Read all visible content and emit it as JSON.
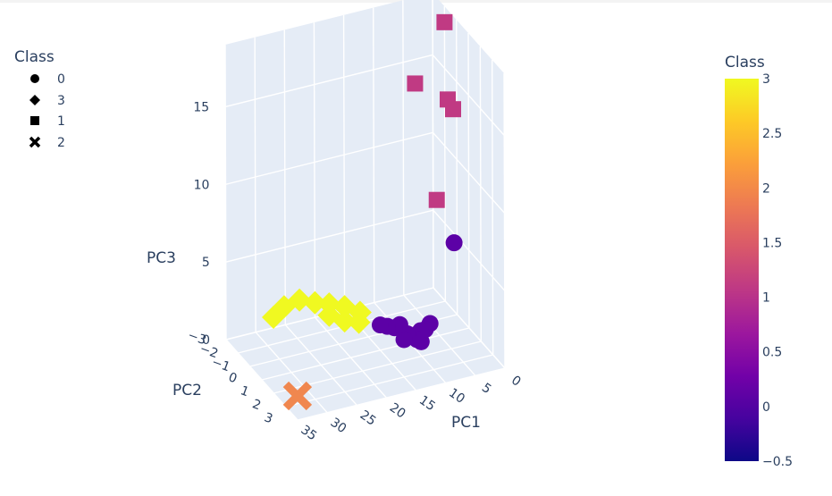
{
  "chart_data": {
    "type": "scatter",
    "subtype": "3d-scatter",
    "axes": {
      "x": {
        "label": "PC1",
        "ticks": [
          "0",
          "5",
          "10",
          "15",
          "20",
          "25",
          "30",
          "35"
        ]
      },
      "y": {
        "label": "PC2",
        "ticks": [
          "−3",
          "−2",
          "−1",
          "0",
          "1",
          "2",
          "3"
        ]
      },
      "z": {
        "label": "PC3",
        "ticks": [
          "0",
          "5",
          "10",
          "15"
        ]
      }
    },
    "legend": {
      "title": "Class",
      "position": "top-left",
      "items": [
        {
          "label": "0",
          "symbol": "circle"
        },
        {
          "label": "3",
          "symbol": "diamond"
        },
        {
          "label": "1",
          "symbol": "square"
        },
        {
          "label": "2",
          "symbol": "x"
        }
      ]
    },
    "colorbar": {
      "title": "Class",
      "range": [
        -0.5,
        3
      ],
      "ticks": [
        "3",
        "2.5",
        "2",
        "1.5",
        "1",
        "0.5",
        "0",
        "−0.5"
      ],
      "colorscale": [
        "#0d0887",
        "#46039f",
        "#7201a8",
        "#9c179e",
        "#bd3786",
        "#d8576b",
        "#ed7953",
        "#fb9f3a",
        "#fdca26",
        "#f0f921"
      ]
    },
    "series": [
      {
        "name": "0",
        "class": 0,
        "symbol": "circle",
        "color": "#5c01a6",
        "points": [
          {
            "pc1": 1.5,
            "pc2": -0.5,
            "pc3": 5.2
          },
          {
            "pc1": 6,
            "pc2": -0.3,
            "pc3": 0.6
          },
          {
            "pc1": 8,
            "pc2": -0.1,
            "pc3": 0.5
          },
          {
            "pc1": 10,
            "pc2": -0.2,
            "pc3": 0.4
          },
          {
            "pc1": 12,
            "pc2": -0.3,
            "pc3": 0.9
          },
          {
            "pc1": 13,
            "pc2": -0.4,
            "pc3": 1.0
          },
          {
            "pc1": 9,
            "pc2": 0.1,
            "pc3": 0.2
          },
          {
            "pc1": 11,
            "pc2": 0.0,
            "pc3": 0.3
          },
          {
            "pc1": 7,
            "pc2": -0.2,
            "pc3": 0.4
          },
          {
            "pc1": 14,
            "pc2": -0.5,
            "pc3": 1.1
          },
          {
            "pc1": 10.5,
            "pc2": -0.6,
            "pc3": 0.7
          },
          {
            "pc1": 8.5,
            "pc2": 0.2,
            "pc3": 0.1
          }
        ]
      },
      {
        "name": "3",
        "class": 3,
        "symbol": "diamond",
        "color": "#f0f921",
        "points": [
          {
            "pc1": 16,
            "pc2": -1.2,
            "pc3": 1.5
          },
          {
            "pc1": 18,
            "pc2": -1.5,
            "pc3": 1.8
          },
          {
            "pc1": 20,
            "pc2": -1.8,
            "pc3": 1.9
          },
          {
            "pc1": 22,
            "pc2": -2.0,
            "pc3": 2.0
          },
          {
            "pc1": 24,
            "pc2": -2.3,
            "pc3": 2.1
          },
          {
            "pc1": 26,
            "pc2": -2.6,
            "pc3": 1.6
          },
          {
            "pc1": 17,
            "pc2": -0.8,
            "pc3": 1.3
          },
          {
            "pc1": 19,
            "pc2": -1.0,
            "pc3": 1.4
          },
          {
            "pc1": 21,
            "pc2": -1.3,
            "pc3": 1.7
          },
          {
            "pc1": 28,
            "pc2": -2.5,
            "pc3": 1.2
          }
        ]
      },
      {
        "name": "1",
        "class": 1,
        "symbol": "square",
        "color": "#c03a83",
        "points": [
          {
            "pc1": 1,
            "pc2": -1.5,
            "pc3": 18.5
          },
          {
            "pc1": 5,
            "pc2": -2.0,
            "pc3": 14.5
          },
          {
            "pc1": 1.5,
            "pc2": -1.0,
            "pc3": 14.0
          },
          {
            "pc1": 1,
            "pc2": -0.8,
            "pc3": 13.5
          },
          {
            "pc1": 3,
            "pc2": -1.2,
            "pc3": 7.5
          }
        ]
      },
      {
        "name": "2",
        "class": 2,
        "symbol": "x",
        "color": "#f0874f",
        "points": [
          {
            "pc1": 33,
            "pc2": 2.0,
            "pc3": 0.5
          }
        ]
      }
    ]
  }
}
